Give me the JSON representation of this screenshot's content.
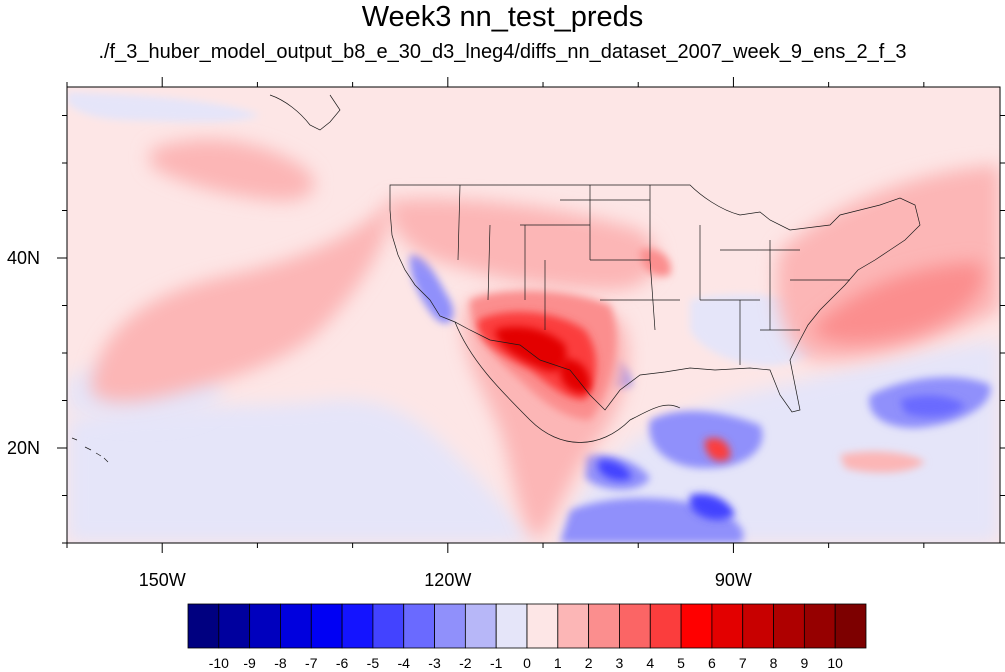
{
  "title": "Week3 nn_test_preds",
  "subtitle": "./f_3_huber_model_output_b8_e_30_d3_lneg4/diffs_nn_dataset_2007_week_9_ens_2_f_3",
  "map": {
    "projection": "cylindrical-equidistant",
    "lon_range": [
      -160,
      -62
    ],
    "lat_range": [
      10,
      58
    ],
    "lon_tick_labels": [
      {
        "lon": -150,
        "label": "150W"
      },
      {
        "lon": -120,
        "label": "120W"
      },
      {
        "lon": -90,
        "label": "90W"
      }
    ],
    "lat_tick_labels": [
      {
        "lat": 40,
        "label": "40N"
      },
      {
        "lat": 20,
        "label": "20N"
      }
    ],
    "background_color": "#fde6e6",
    "boundary_color": "#1a1a1a"
  },
  "colorbar": {
    "labels": [
      "-10",
      "-9",
      "-8",
      "-7",
      "-6",
      "-5",
      "-4",
      "-3",
      "-2",
      "-1",
      "0",
      "1",
      "2",
      "3",
      "4",
      "5",
      "6",
      "7",
      "8",
      "9",
      "10"
    ],
    "colors": [
      "#000080",
      "#00009e",
      "#0000be",
      "#0000de",
      "#0000f4",
      "#1414ff",
      "#4343ff",
      "#6a6aff",
      "#9090fb",
      "#b7b7f8",
      "#e5e5f9",
      "#fde6e6",
      "#fcb6b6",
      "#fb8e8e",
      "#fb6565",
      "#fb3d3d",
      "#ff0000",
      "#e30000",
      "#c80000",
      "#ae0000",
      "#960000",
      "#7d0000"
    ]
  }
}
